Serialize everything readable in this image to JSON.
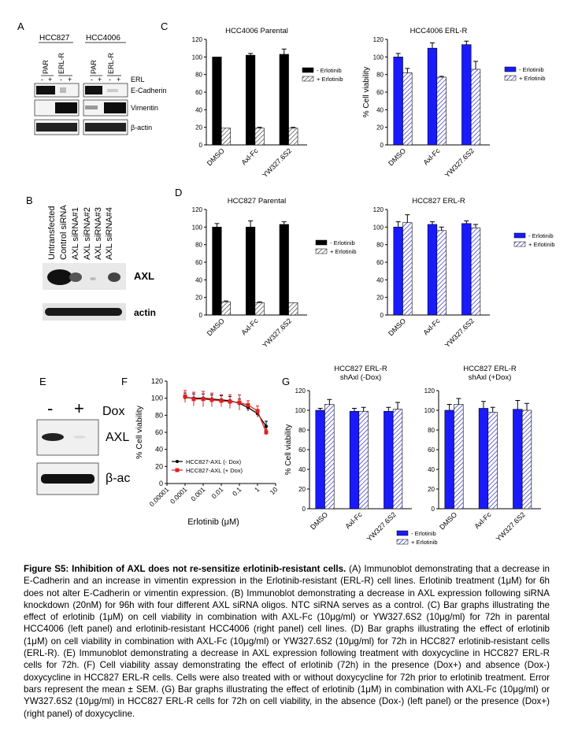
{
  "panels": {
    "A": {
      "label": "A",
      "cell_lines": [
        "HCC827",
        "HCC4006"
      ],
      "groups": [
        "PAR",
        "ERL-R",
        "PAR",
        "ERL-R"
      ],
      "treatment_signs": [
        "-",
        "+",
        "-",
        "+",
        "-",
        "+",
        "-",
        "+"
      ],
      "treatment_label": "ERL",
      "bands": [
        "E-Cadherin",
        "Vimentin",
        "β-actin"
      ]
    },
    "B": {
      "label": "B",
      "lanes": [
        "Untransfected",
        "Control siRNA",
        "AXL siRNA#1",
        "AXL siRNA#2",
        "AXL siRNA#3",
        "AXL siRNA#4"
      ],
      "bands": [
        "AXL",
        "actin"
      ]
    },
    "C": {
      "label": "C"
    },
    "D": {
      "label": "D"
    },
    "E": {
      "label": "E",
      "signs": [
        "-",
        "+"
      ],
      "dox_label": "Dox",
      "bands": [
        "AXL",
        "β-ac"
      ]
    },
    "F": {
      "label": "F"
    },
    "G": {
      "label": "G"
    }
  },
  "chart_data": [
    {
      "id": "C-left",
      "type": "bar",
      "title": "HCC4006 Parental",
      "categories": [
        "DMSO",
        "Axl-Fc",
        "YW327.6S2"
      ],
      "series": [
        {
          "name": "- Erlotinib",
          "values": [
            100,
            102,
            103
          ],
          "errors": [
            0,
            2,
            6
          ]
        },
        {
          "name": "+ Erlotinib",
          "values": [
            19,
            19,
            19
          ],
          "errors": [
            0,
            1,
            1
          ]
        }
      ],
      "ylim": [
        0,
        120
      ],
      "yticks": [
        0,
        20,
        40,
        60,
        80,
        100,
        120
      ],
      "ylabel": "",
      "color_minus": "#000000",
      "color_plus": "hatched grey"
    },
    {
      "id": "C-right",
      "type": "bar",
      "title": "HCC4006 ERL-R",
      "categories": [
        "DMSO",
        "Axl-Fc",
        "YW327.6S2"
      ],
      "series": [
        {
          "name": "- Erlotinib",
          "values": [
            100,
            110,
            114
          ],
          "errors": [
            4,
            6,
            4
          ]
        },
        {
          "name": "+ Erlotinib",
          "values": [
            82,
            77,
            86
          ],
          "errors": [
            5,
            1,
            9
          ]
        }
      ],
      "ylim": [
        0,
        120
      ],
      "yticks": [
        0,
        20,
        40,
        60,
        80,
        100,
        120
      ],
      "ylabel": "% Cell viability",
      "color_minus": "#1a1aff",
      "color_plus": "hatched blue"
    },
    {
      "id": "D-left",
      "type": "bar",
      "title": "HCC827 Parental",
      "categories": [
        "DMSO",
        "Axl-Fc",
        "YW327.6S2"
      ],
      "series": [
        {
          "name": "- Erlotinib",
          "values": [
            100,
            100,
            103
          ],
          "errors": [
            4,
            7,
            3
          ]
        },
        {
          "name": "+ Erlotinib",
          "values": [
            15,
            14,
            14
          ],
          "errors": [
            1,
            1,
            0
          ]
        }
      ],
      "ylim": [
        0,
        120
      ],
      "yticks": [
        0,
        20,
        40,
        60,
        80,
        100,
        120
      ],
      "ylabel": "",
      "color_minus": "#000000",
      "color_plus": "hatched grey"
    },
    {
      "id": "D-right",
      "type": "bar",
      "title": "HCC827 ERL-R",
      "categories": [
        "DMSO",
        "Axl-Fc",
        "YW327.6S2"
      ],
      "series": [
        {
          "name": "- Erlotinib",
          "values": [
            100,
            103,
            104
          ],
          "errors": [
            6,
            3,
            3
          ]
        },
        {
          "name": "+ Erlotinib",
          "values": [
            105,
            96,
            99
          ],
          "errors": [
            9,
            4,
            4
          ]
        }
      ],
      "ylim": [
        0,
        120
      ],
      "yticks": [
        0,
        20,
        40,
        60,
        80,
        100,
        120
      ],
      "ylabel": "",
      "color_minus": "#1a1aff",
      "color_plus": "hatched blue"
    },
    {
      "id": "F",
      "type": "line",
      "title": "",
      "x_log": true,
      "xticks": [
        "0.00001",
        "0.0001",
        "0.001",
        "0.01",
        "0.1",
        "1",
        "10"
      ],
      "xlabel": "Erlotinib (μM)",
      "ylabel": "% Cell viability",
      "ylim": [
        0,
        120
      ],
      "yticks": [
        0,
        20,
        40,
        60,
        80,
        100,
        120
      ],
      "series": [
        {
          "name": "HCC827-AXL (- Dox)",
          "color": "#000000",
          "x": [
            0.0001,
            0.0003,
            0.001,
            0.003,
            0.01,
            0.03,
            0.1,
            0.3,
            1,
            3
          ],
          "y": [
            101,
            100,
            100,
            99,
            98,
            97,
            94,
            89,
            82,
            67
          ],
          "err": [
            5,
            5,
            5,
            5,
            5,
            5,
            5,
            4,
            4,
            6
          ]
        },
        {
          "name": "HCC827-AXL (+ Dox)",
          "color": "#e02020",
          "x": [
            0.0001,
            0.0003,
            0.001,
            0.003,
            0.01,
            0.03,
            0.1,
            0.3,
            1,
            3
          ],
          "y": [
            102,
            99,
            99,
            98,
            97,
            96,
            95,
            92,
            85,
            60
          ],
          "err": [
            7,
            8,
            9,
            8,
            7,
            8,
            9,
            5,
            6,
            3
          ]
        }
      ]
    },
    {
      "id": "G-left",
      "type": "bar",
      "title": "HCC827 ERL-R shAxl (-Dox)",
      "categories": [
        "DMSO",
        "Axl-Fc",
        "YW327.6S2"
      ],
      "series": [
        {
          "name": "- Erlotinib",
          "values": [
            100,
            99,
            99
          ],
          "errors": [
            2,
            3,
            4
          ]
        },
        {
          "name": "+ Erlotinib",
          "values": [
            106,
            99,
            101
          ],
          "errors": [
            5,
            4,
            7
          ]
        }
      ],
      "ylim": [
        0,
        120
      ],
      "yticks": [
        0,
        20,
        40,
        60,
        80,
        100,
        120
      ],
      "ylabel": "% Cell viability",
      "color_minus": "#1a1aff",
      "color_plus": "hatched blue"
    },
    {
      "id": "G-right",
      "type": "bar",
      "title": "HCC827 ERL-R shAxl (+Dox)",
      "categories": [
        "DMSO",
        "Axl-Fc",
        "YW327.6S2"
      ],
      "series": [
        {
          "name": "- Erlotinib",
          "values": [
            100,
            102,
            101
          ],
          "errors": [
            6,
            7,
            9
          ]
        },
        {
          "name": "+ Erlotinib",
          "values": [
            106,
            98,
            100
          ],
          "errors": [
            6,
            5,
            7
          ]
        }
      ],
      "ylim": [
        0,
        120
      ],
      "yticks": [
        0,
        20,
        40,
        60,
        80,
        100,
        120
      ],
      "ylabel": "",
      "color_minus": "#1a1aff",
      "color_plus": "hatched blue"
    }
  ],
  "legends": {
    "bw": [
      "- Erlotinib",
      "+ Erlotinib"
    ],
    "blue": [
      "- Erlotinib",
      "+ Erlotinib"
    ]
  },
  "caption": {
    "title": "Figure S5: Inhibition of AXL does not re-sensitize erlotinib-resistant cells.",
    "body": " (A) Immunoblot demonstrating that a decrease in E-Cadherin and an increase in vimentin expression in the Erlotinib-resistant (ERL-R) cell lines. Erlotinib treatment (1μM) for 6h does not alter E-Cadherin or vimentin expression. (B) Immunoblot demonstrating a decrease in AXL expression following siRNA knockdown (20nM) for 96h with four different AXL siRNA oligos. NTC siRNA serves as a control. (C) Bar graphs illustrating the effect of erlotinib (1μM) on cell viability in combination with AXL-Fc (10μg/ml) or YW327.6S2 (10μg/ml) for 72h in parental HCC4006 (left panel) and erlotinib-resistant HCC4006 (right panel) cell lines. (D) Bar graphs illustrating the effect of erlotinib (1μM) on cell viability in combination with AXL-Fc (10μg/ml) or YW327.6S2 (10μg/ml) for 72h in HCC827 erlotinib-resistant cells (ERL-R). (E) Immunoblot demonstrating a decrease in AXL expression following treatment with doxycycline in HCC827 ERL-R cells for 72h. (F) Cell viability assay demonstrating the effect of erlotinib (72h) in the presence (Dox+) and absence (Dox-) doxycycline in HCC827 ERL-R cells. Cells were also treated with or without doxycycline for 72h prior to erlotinib treatment. Error bars represent the mean ± SEM. (G) Bar graphs illustrating the effect of erlotinib (1μM) in combination with AXL-Fc (10μg/ml) or YW327.6S2 (10μg/ml) in HCC827 ERL-R cells for 72h on cell viability, in the absence (Dox-) (left panel) or the presence (Dox+) (right panel) of doxycycline."
  }
}
